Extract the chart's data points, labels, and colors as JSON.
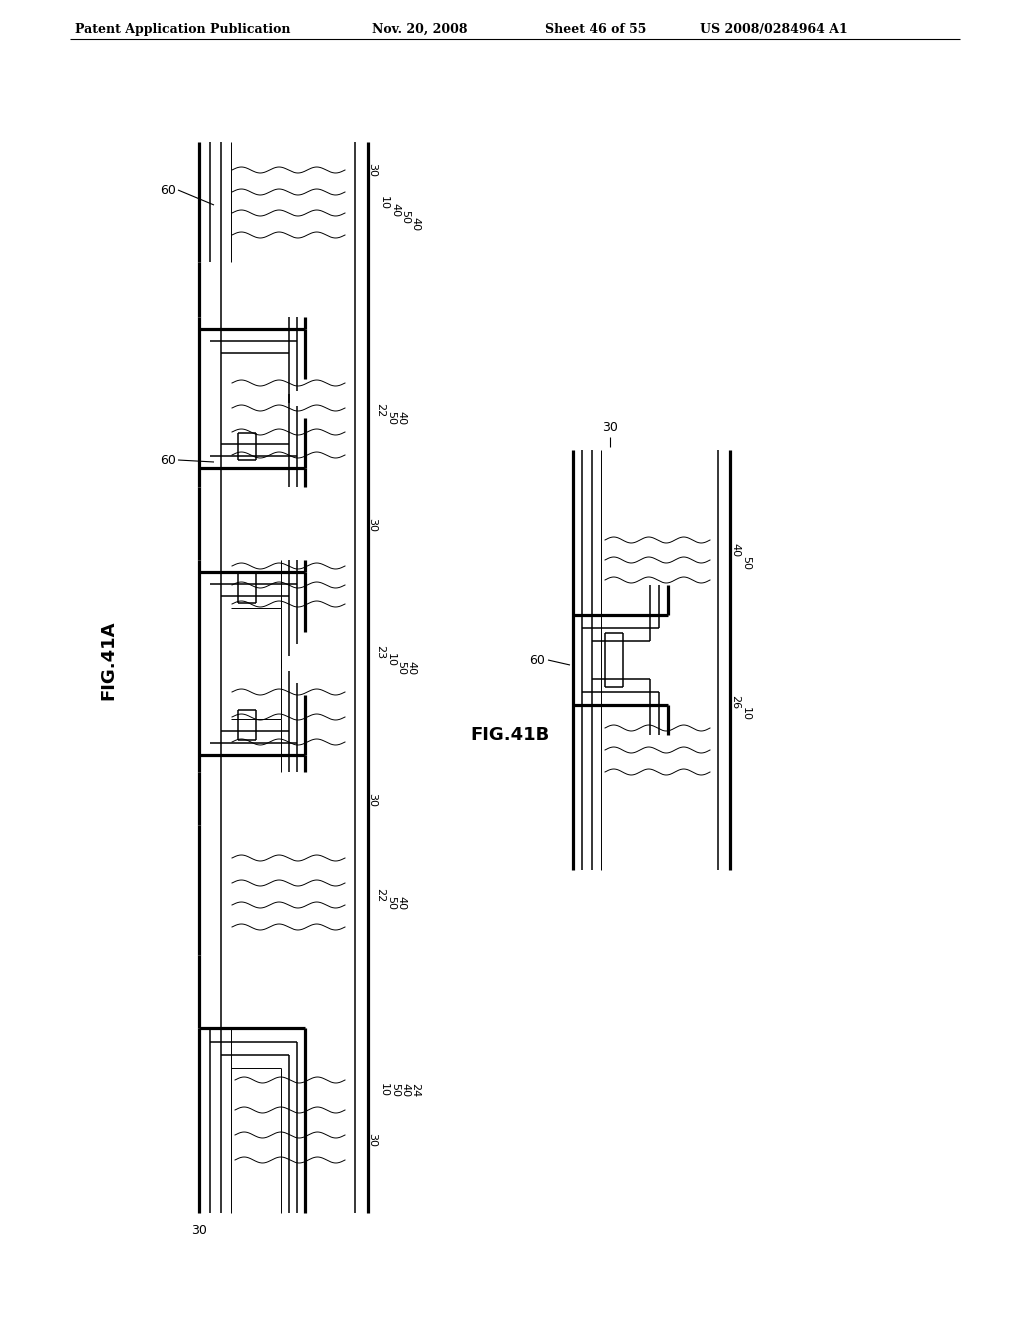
{
  "bg_color": "#ffffff",
  "line_color": "#000000",
  "header_text": "Patent Application Publication",
  "header_date": "Nov. 20, 2008",
  "header_sheet": "Sheet 46 of 55",
  "header_patent": "US 2008/0284964 A1",
  "fig_label_A": "FIG.41A",
  "fig_label_B": "FIG.41B"
}
